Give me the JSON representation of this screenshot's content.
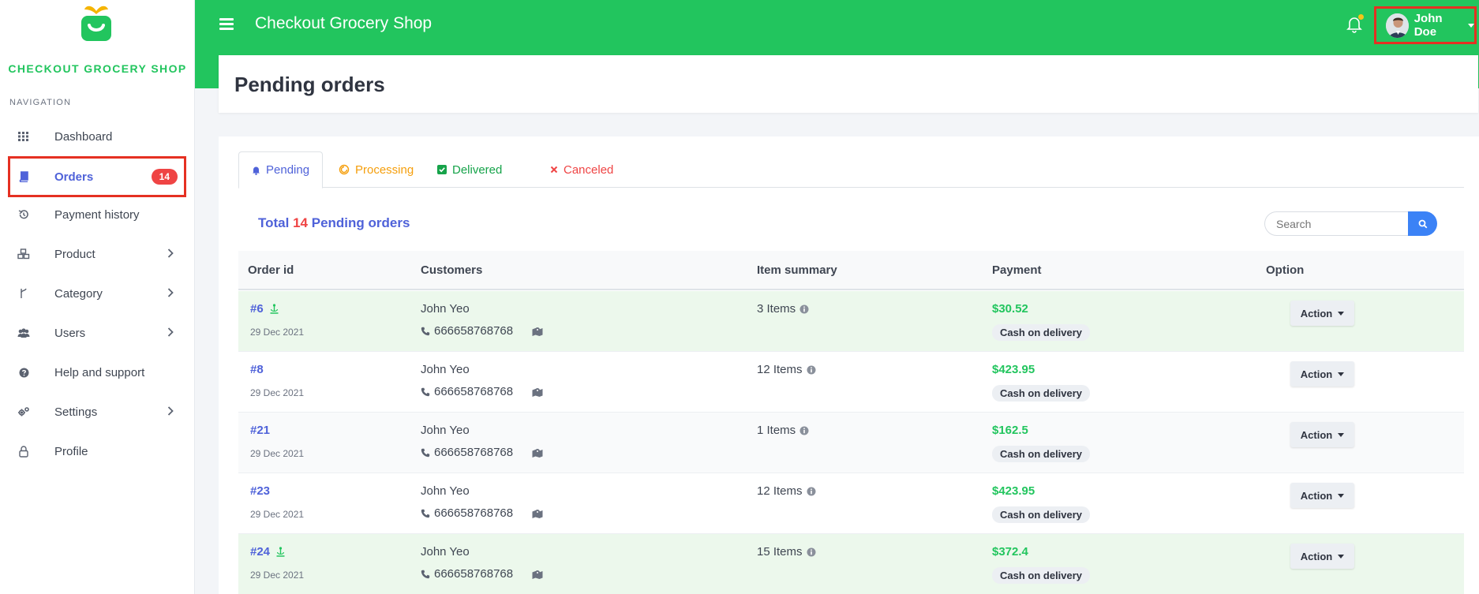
{
  "app": {
    "title": "Checkout Grocery Shop",
    "brand": "CHECKOUT GROCERY SHOP"
  },
  "colors": {
    "primary": "#22c55e",
    "accent": "#4f62d9",
    "danger": "#ef4444",
    "highlight_border": "#e53022"
  },
  "sidebar": {
    "heading": "NAVIGATION",
    "items": [
      {
        "label": "Dashboard",
        "icon": "grid-icon"
      },
      {
        "label": "Orders",
        "icon": "book-icon",
        "badge": "14",
        "active": true
      },
      {
        "label": "Payment history",
        "icon": "history-icon"
      },
      {
        "label": "Product",
        "icon": "cubes-icon",
        "has_submenu": true
      },
      {
        "label": "Category",
        "icon": "fork-icon",
        "has_submenu": true
      },
      {
        "label": "Users",
        "icon": "users-icon",
        "has_submenu": true
      },
      {
        "label": "Help and support",
        "icon": "question-icon"
      },
      {
        "label": "Settings",
        "icon": "gears-icon",
        "has_submenu": true
      },
      {
        "label": "Profile",
        "icon": "lock-icon"
      }
    ]
  },
  "header": {
    "user_name": "John Doe",
    "notification_icon": "bell-icon"
  },
  "page": {
    "title": "Pending orders"
  },
  "tabs": [
    {
      "label": "Pending",
      "icon": "bell-icon",
      "color": "#4f62d9",
      "active": true
    },
    {
      "label": "Processing",
      "icon": "spinner-icon",
      "color": "#f59e0b"
    },
    {
      "label": "Delivered",
      "icon": "check-square-icon",
      "color": "#16a34a"
    },
    {
      "label": "Canceled",
      "icon": "x-icon",
      "color": "#ef4444"
    }
  ],
  "summary": {
    "prefix": "Total",
    "count": "14",
    "suffix": "Pending orders"
  },
  "search": {
    "placeholder": "Search"
  },
  "table": {
    "columns": [
      "Order id",
      "Customers",
      "Item summary",
      "Payment",
      "Option"
    ],
    "rows": [
      {
        "id": "#6",
        "pickup": true,
        "date": "29 Dec 2021",
        "customer": "John Yeo",
        "phone": "666658768768",
        "items": "3 Items",
        "amount": "$30.52",
        "method": "Cash on delivery",
        "action": "Action",
        "style": "green"
      },
      {
        "id": "#8",
        "pickup": false,
        "date": "29 Dec 2021",
        "customer": "John Yeo",
        "phone": "666658768768",
        "items": "12 Items",
        "amount": "$423.95",
        "method": "Cash on delivery",
        "action": "Action",
        "style": "white"
      },
      {
        "id": "#21",
        "pickup": false,
        "date": "29 Dec 2021",
        "customer": "John Yeo",
        "phone": "666658768768",
        "items": "1 Items",
        "amount": "$162.5",
        "method": "Cash on delivery",
        "action": "Action",
        "style": "grey"
      },
      {
        "id": "#23",
        "pickup": false,
        "date": "29 Dec 2021",
        "customer": "John Yeo",
        "phone": "666658768768",
        "items": "12 Items",
        "amount": "$423.95",
        "method": "Cash on delivery",
        "action": "Action",
        "style": "white"
      },
      {
        "id": "#24",
        "pickup": true,
        "date": "29 Dec 2021",
        "customer": "John Yeo",
        "phone": "666658768768",
        "items": "15 Items",
        "amount": "$372.4",
        "method": "Cash on delivery",
        "action": "Action",
        "style": "green"
      }
    ]
  }
}
